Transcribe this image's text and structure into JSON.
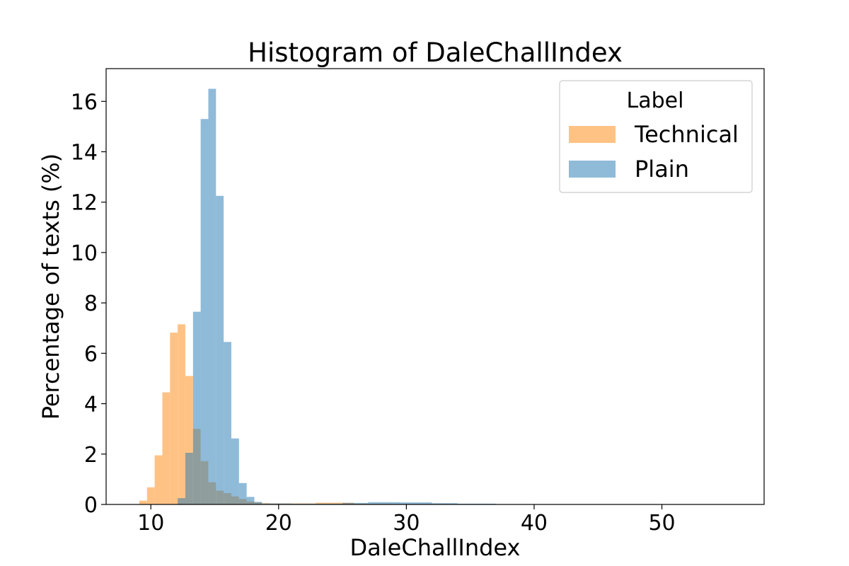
{
  "chart_data": {
    "type": "histogram",
    "title": "Histogram of DaleChallIndex",
    "xlabel": "DaleChallIndex",
    "ylabel": "Percentage of texts (%)",
    "xlim": [
      6.5,
      58.0
    ],
    "ylim": [
      0,
      17.3
    ],
    "x_ticks": [
      10,
      20,
      30,
      40,
      50
    ],
    "y_ticks": [
      0,
      2,
      4,
      6,
      8,
      10,
      12,
      14,
      16
    ],
    "legend": {
      "title": "Label",
      "position": "top-right"
    },
    "series": [
      {
        "name": "Technical",
        "color": "#ffbb78",
        "alpha": 0.9,
        "bins": [
          [
            9.1,
            9.7,
            0.15
          ],
          [
            9.7,
            10.3,
            0.68
          ],
          [
            10.3,
            10.9,
            1.95
          ],
          [
            10.9,
            11.5,
            4.45
          ],
          [
            11.5,
            12.1,
            6.82
          ],
          [
            12.1,
            12.7,
            7.15
          ],
          [
            12.7,
            13.3,
            5.1
          ],
          [
            13.3,
            13.9,
            3.0
          ],
          [
            13.9,
            14.5,
            1.72
          ],
          [
            14.5,
            15.1,
            0.88
          ],
          [
            15.1,
            15.7,
            0.55
          ],
          [
            15.7,
            16.3,
            0.45
          ],
          [
            16.3,
            16.9,
            0.32
          ],
          [
            16.9,
            17.5,
            0.22
          ],
          [
            17.5,
            18.1,
            0.12
          ],
          [
            18.1,
            18.7,
            0.08
          ],
          [
            18.7,
            19.3,
            0.05
          ],
          [
            19.3,
            19.9,
            0.04
          ],
          [
            19.9,
            22.9,
            0.04
          ],
          [
            22.9,
            25.9,
            0.07
          ],
          [
            25.9,
            28.9,
            0.03
          ],
          [
            28.9,
            33.0,
            0.02
          ]
        ]
      },
      {
        "name": "Plain",
        "color": "#1f77b4",
        "alpha": 0.5,
        "bins": [
          [
            12.1,
            12.7,
            0.25
          ],
          [
            12.7,
            13.3,
            2.05
          ],
          [
            13.3,
            13.9,
            7.65
          ],
          [
            13.9,
            14.5,
            15.3
          ],
          [
            14.5,
            15.1,
            16.5
          ],
          [
            15.1,
            15.7,
            12.25
          ],
          [
            15.7,
            16.3,
            6.45
          ],
          [
            16.3,
            16.9,
            2.62
          ],
          [
            16.9,
            17.5,
            0.85
          ],
          [
            17.5,
            18.1,
            0.3
          ],
          [
            18.1,
            18.7,
            0.1
          ],
          [
            18.7,
            21.0,
            0.04
          ],
          [
            21.0,
            25.0,
            0.03
          ],
          [
            25.0,
            27.0,
            0.06
          ],
          [
            27.0,
            29.5,
            0.09
          ],
          [
            29.5,
            32.0,
            0.08
          ],
          [
            32.0,
            34.0,
            0.05
          ],
          [
            34.0,
            37.0,
            0.03
          ]
        ]
      }
    ]
  }
}
